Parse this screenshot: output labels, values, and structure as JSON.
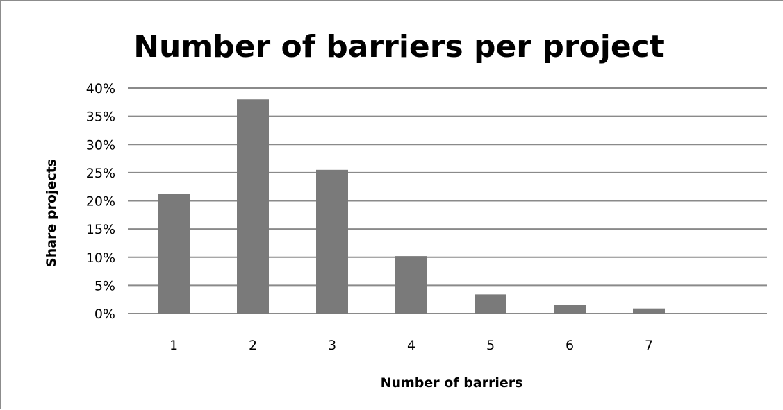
{
  "chart_data": {
    "type": "bar",
    "title": "Number of barriers per project",
    "xlabel": "Number of barriers",
    "ylabel": "Share projects",
    "categories": [
      "1",
      "2",
      "3",
      "4",
      "5",
      "6",
      "7"
    ],
    "values": [
      21.2,
      38.0,
      25.5,
      10.2,
      3.4,
      1.6,
      0.9
    ],
    "ylim": [
      0,
      40
    ],
    "yticks": [
      "0%",
      "5%",
      "10%",
      "15%",
      "20%",
      "25%",
      "30%",
      "35%",
      "40%"
    ],
    "grid": true,
    "legend": "none",
    "bar_color": "#7a7a7a",
    "grid_color": "#8a8a8a"
  }
}
